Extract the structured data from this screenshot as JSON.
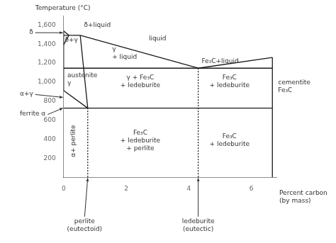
{
  "chart_data": {
    "type": "line",
    "xlabel": "Percent carbon\n(by mass)",
    "ylabel": "Temperature (°C)",
    "xlim": [
      0,
      6.8
    ],
    "ylim": [
      0,
      1700
    ],
    "xticks": [
      0,
      2,
      4,
      6
    ],
    "yticks": [
      200,
      400,
      600,
      800,
      {
        "value": 1000,
        "label": "1,000"
      },
      {
        "value": 1200,
        "label": "1,200"
      },
      {
        "value": 1400,
        "label": "1,400"
      },
      {
        "value": 1600,
        "label": "1,600"
      }
    ],
    "grid": false,
    "color": "#1a1a1a",
    "series": [
      {
        "x": [
          0,
          0
        ],
        "values": [
          1394,
          1538
        ],
        "line_style": "solid"
      },
      {
        "x": [
          0,
          0.17
        ],
        "values": [
          1538,
          1493
        ],
        "line_style": "solid"
      },
      {
        "x": [
          0,
          0.17
        ],
        "values": [
          1394,
          1493
        ],
        "line_style": "solid"
      },
      {
        "x": [
          0,
          0.53
        ],
        "values": [
          1493,
          1493
        ],
        "line_style": "solid"
      },
      {
        "x": [
          0.53,
          4.3
        ],
        "values": [
          1493,
          1147
        ],
        "line_style": "solid"
      },
      {
        "x": [
          4.3,
          6.67
        ],
        "values": [
          1147,
          1260
        ],
        "line_style": "solid"
      },
      {
        "x": [
          0,
          0
        ],
        "values": [
          912,
          1394
        ],
        "line_style": "solid"
      },
      {
        "x": [
          0,
          0.77
        ],
        "values": [
          912,
          727
        ],
        "line_style": "solid"
      },
      {
        "x": [
          0.53,
          0.77
        ],
        "values": [
          1493,
          727
        ],
        "line_style": "solid"
      },
      {
        "x": [
          0,
          6.67
        ],
        "values": [
          1147,
          1147
        ],
        "line_style": "solid"
      },
      {
        "x": [
          0,
          6.67
        ],
        "values": [
          727,
          727
        ],
        "line_style": "solid"
      },
      {
        "x": [
          6.67,
          6.67
        ],
        "values": [
          0,
          1260
        ],
        "line_style": "solid"
      },
      {
        "x": [
          0.77,
          0.77
        ],
        "values": [
          0,
          727
        ],
        "line_style": "dotted"
      },
      {
        "x": [
          4.3,
          4.3
        ],
        "values": [
          0,
          1147
        ],
        "line_style": "dotted"
      }
    ],
    "annotations": [
      {
        "text": "δ",
        "x": -1.1,
        "y": 1520,
        "align": "left",
        "arrow_x": 0,
        "arrow_y": 1520
      },
      {
        "text": "α+γ",
        "x": -1.4,
        "y": 870,
        "align": "left",
        "arrow_x": 0,
        "arrow_y": 840
      },
      {
        "text": "ferrite α",
        "x": -1.4,
        "y": 660,
        "align": "left",
        "arrow_x": 0,
        "arrow_y": 727
      },
      {
        "text": "liquid",
        "x": 3.0,
        "y": 1450,
        "align": "center"
      },
      {
        "text": "δ+liquid",
        "x": 0.65,
        "y": 1590,
        "align": "left"
      },
      {
        "text": "δ+γ",
        "x": 0.04,
        "y": 1435,
        "align": "left"
      },
      {
        "text": "austenite\nγ",
        "x": 0.12,
        "y": 1020,
        "align": "left"
      },
      {
        "text": "γ\n+ liquid",
        "x": 1.55,
        "y": 1300,
        "align": "left"
      },
      {
        "text": "Fe₃C+liquid",
        "x": 5.0,
        "y": 1210,
        "align": "center"
      },
      {
        "text": "γ + Fe₃C\n+ ledeburite",
        "x": 2.45,
        "y": 1000,
        "align": "center"
      },
      {
        "text": "Fe₃C\n+ ledeburite",
        "x": 5.3,
        "y": 1000,
        "align": "center"
      },
      {
        "text": "α+ perlite",
        "x": 0.32,
        "y": 380,
        "align": "center"
      },
      {
        "text": "Fe₃C\n+ ledeburite\n+ perlite",
        "x": 2.45,
        "y": 380,
        "align": "center"
      },
      {
        "text": "Fe₃C\n+ ledeburite",
        "x": 5.3,
        "y": 380,
        "align": "center"
      },
      {
        "text": "cementite\nFe₃C",
        "x": 6.85,
        "y": 950,
        "align": "left"
      },
      {
        "text": "perlite\n(eutectoid)",
        "x": 0.67,
        "y": -430,
        "align": "center",
        "arrow_x": 0.77,
        "arrow_y": 0
      },
      {
        "text": "ledeburite\n(eutectic)",
        "x": 4.3,
        "y": -430,
        "align": "center",
        "arrow_x": 4.3,
        "arrow_y": 0
      }
    ]
  }
}
